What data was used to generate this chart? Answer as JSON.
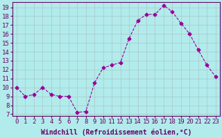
{
  "x": [
    0,
    1,
    2,
    3,
    4,
    5,
    6,
    7,
    8,
    9,
    10,
    11,
    12,
    13,
    14,
    15,
    16,
    17,
    18,
    19,
    20,
    21,
    22,
    23
  ],
  "y": [
    10,
    9,
    9.2,
    10,
    9.2,
    9,
    9,
    7.2,
    7.3,
    10.5,
    12.2,
    12.5,
    12.8,
    15.5,
    17.5,
    18.2,
    18.2,
    19.2,
    18.5,
    17.2,
    16,
    14.2,
    12.5,
    11.2
  ],
  "line_color": "#990099",
  "marker": "D",
  "marker_size": 2.5,
  "bg_color": "#b2ebeb",
  "grid_color": "#aacccc",
  "xlabel": "Windchill (Refroidissement éolien,°C)",
  "xlim": [
    -0.5,
    23.5
  ],
  "ylim": [
    6.8,
    19.6
  ],
  "yticks": [
    7,
    8,
    9,
    10,
    11,
    12,
    13,
    14,
    15,
    16,
    17,
    18,
    19
  ],
  "xticks": [
    0,
    1,
    2,
    3,
    4,
    5,
    6,
    7,
    8,
    9,
    10,
    11,
    12,
    13,
    14,
    15,
    16,
    17,
    18,
    19,
    20,
    21,
    22,
    23
  ],
  "tick_fontsize": 6.5,
  "xlabel_fontsize": 7,
  "axis_text_color": "#660066",
  "spine_color": "#660066"
}
